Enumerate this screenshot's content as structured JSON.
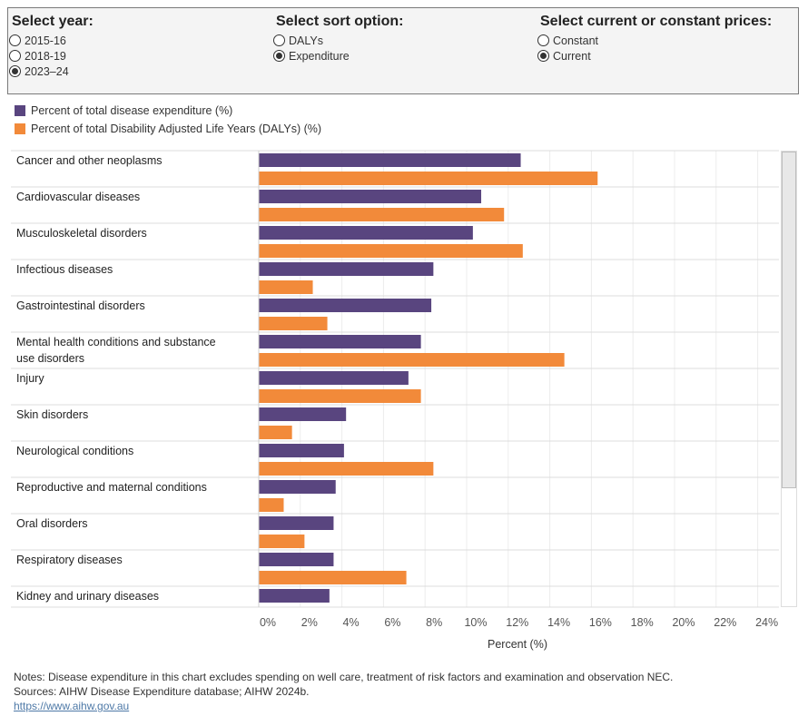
{
  "controls": {
    "year": {
      "title": "Select year:",
      "options": [
        "2015-16",
        "2018-19",
        "2023–24"
      ],
      "selected": 2
    },
    "sort": {
      "title": "Select sort option:",
      "options": [
        "DALYs",
        "Expenditure"
      ],
      "selected": 1
    },
    "prices": {
      "title": "Select current or constant prices:",
      "options": [
        "Constant",
        "Current"
      ],
      "selected": 1
    }
  },
  "legend": [
    {
      "label": "Percent of total disease expenditure (%)",
      "color": "#59457f"
    },
    {
      "label": "Percent of total Disability Adjusted Life Years (DALYs) (%)",
      "color": "#f28a3a"
    }
  ],
  "chart_data": {
    "type": "bar",
    "orientation": "horizontal",
    "categories": [
      [
        "Cancer and other neoplasms"
      ],
      [
        "Cardiovascular diseases"
      ],
      [
        "Musculoskeletal disorders"
      ],
      [
        "Infectious diseases"
      ],
      [
        "Gastrointestinal disorders"
      ],
      [
        "Mental health conditions and substance",
        "use disorders"
      ],
      [
        "Injury"
      ],
      [
        "Skin disorders"
      ],
      [
        "Neurological conditions"
      ],
      [
        "Reproductive and maternal conditions"
      ],
      [
        "Oral disorders"
      ],
      [
        "Respiratory diseases"
      ],
      [
        "Kidney and urinary diseases"
      ]
    ],
    "series": [
      {
        "name": "Percent of total disease expenditure (%)",
        "color": "#59457f",
        "values": [
          12.6,
          10.7,
          10.3,
          8.4,
          8.3,
          7.8,
          7.2,
          4.2,
          4.1,
          3.7,
          3.6,
          3.6,
          3.4
        ]
      },
      {
        "name": "Percent of total Disability Adjusted Life Years (DALYs) (%)",
        "color": "#f28a3a",
        "values": [
          16.3,
          11.8,
          12.7,
          2.6,
          3.3,
          14.7,
          7.8,
          1.6,
          8.4,
          1.2,
          2.2,
          7.1,
          null
        ]
      }
    ],
    "xticks": [
      "0%",
      "2%",
      "4%",
      "6%",
      "8%",
      "10%",
      "12%",
      "14%",
      "16%",
      "18%",
      "20%",
      "22%",
      "24%"
    ],
    "xlim": [
      0,
      25
    ],
    "xlabel": "Percent (%)",
    "grid": true,
    "legend_position": "top-left"
  },
  "notes": {
    "line1": "Notes: Disease expenditure in this chart excludes spending on well care, treatment of risk factors and examination and observation NEC.",
    "line2": "Sources: AIHW Disease Expenditure database; AIHW 2024b.",
    "link": "https://www.aihw.gov.au"
  }
}
